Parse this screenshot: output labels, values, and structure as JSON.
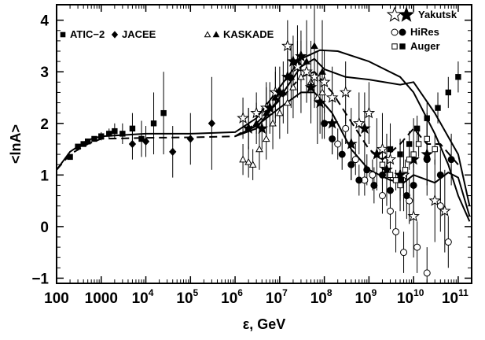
{
  "chart_data": {
    "type": "scatter",
    "xlabel": "ε, GeV",
    "ylabel": "<lnA>",
    "xscale": "log",
    "xlim": [
      100,
      200000000000
    ],
    "ylim": [
      -1.1,
      4.3
    ],
    "x_ticks": [
      {
        "value": 100,
        "base": "100",
        "exp": ""
      },
      {
        "value": 1000,
        "base": "1000",
        "exp": ""
      },
      {
        "value": 10000,
        "base": "10",
        "exp": "4"
      },
      {
        "value": 100000,
        "base": "10",
        "exp": "5"
      },
      {
        "value": 1000000,
        "base": "10",
        "exp": "6"
      },
      {
        "value": 10000000,
        "base": "10",
        "exp": "7"
      },
      {
        "value": 100000000,
        "base": "10",
        "exp": "8"
      },
      {
        "value": 1000000000,
        "base": "10",
        "exp": "9"
      },
      {
        "value": 10000000000,
        "base": "10",
        "exp": "10"
      },
      {
        "value": 100000000000,
        "base": "10",
        "exp": "11"
      }
    ],
    "y_ticks": [
      {
        "value": -1,
        "label": "−1"
      },
      {
        "value": 0,
        "label": "0"
      },
      {
        "value": 1,
        "label": "1"
      },
      {
        "value": 2,
        "label": "2"
      },
      {
        "value": 3,
        "label": "3"
      },
      {
        "value": 4,
        "label": "4"
      }
    ],
    "legend": {
      "left": [
        {
          "label": "ATIC−2",
          "markers": [
            "square-filled"
          ]
        },
        {
          "label": "JACEE",
          "markers": [
            "diamond-filled"
          ]
        },
        {
          "label": "KASKADE",
          "markers": [
            "triangle-open",
            "triangle-filled"
          ]
        }
      ],
      "right": [
        {
          "label": "Yakutsk",
          "markers": [
            "star-open",
            "star-filled"
          ]
        },
        {
          "label": "HiRes",
          "markers": [
            "circle-open",
            "circle-filled"
          ]
        },
        {
          "label": "Auger",
          "markers": [
            "square-open",
            "square-filled"
          ]
        }
      ]
    },
    "series": [
      {
        "name": "ATIC−2",
        "marker": "square-filled",
        "points": [
          [
            200,
            1.35,
            0.05
          ],
          [
            300,
            1.55,
            0.05
          ],
          [
            400,
            1.6,
            0.05
          ],
          [
            500,
            1.65,
            0.05
          ],
          [
            700,
            1.7,
            0.05
          ],
          [
            1000,
            1.75,
            0.08
          ],
          [
            1500,
            1.8,
            0.1
          ],
          [
            2000,
            1.85,
            0.15
          ],
          [
            3000,
            1.8,
            0.2
          ],
          [
            5000,
            1.9,
            0.3
          ],
          [
            8000,
            1.7,
            0.35
          ],
          [
            15000,
            2.0,
            0.6
          ],
          [
            25000,
            2.2,
            0.8
          ]
        ]
      },
      {
        "name": "JACEE",
        "marker": "diamond-filled",
        "points": [
          [
            5000,
            1.6,
            0.3
          ],
          [
            10000,
            1.65,
            0.3
          ],
          [
            40000,
            1.45,
            0.5
          ],
          [
            100000,
            1.7,
            0.5
          ],
          [
            300000,
            2.0,
            0.9
          ]
        ]
      },
      {
        "name": "KASKADE open",
        "marker": "triangle-open",
        "points": [
          [
            1500000,
            1.3,
            0.3
          ],
          [
            2000000,
            1.25,
            0.3
          ],
          [
            2500000,
            1.2,
            0.3
          ],
          [
            3500000,
            1.5,
            0.4
          ],
          [
            5000000,
            1.7,
            0.4
          ],
          [
            7000000,
            2.0,
            0.5
          ],
          [
            10000000,
            2.2,
            0.5
          ],
          [
            15000000,
            2.4,
            0.6
          ],
          [
            20000000,
            2.7,
            0.6
          ],
          [
            30000000,
            2.9,
            0.7
          ],
          [
            50000000,
            2.8,
            0.8
          ],
          [
            70000000,
            2.5,
            0.9
          ],
          [
            90000000,
            2.6,
            0.9
          ]
        ]
      },
      {
        "name": "KASKADE filled",
        "marker": "triangle-filled",
        "points": [
          [
            2000000,
            1.9,
            0.4
          ],
          [
            3000000,
            2.0,
            0.4
          ],
          [
            5000000,
            2.2,
            0.5
          ],
          [
            8000000,
            2.5,
            0.5
          ],
          [
            12000000,
            2.6,
            0.6
          ],
          [
            18000000,
            2.9,
            0.6
          ],
          [
            25000000,
            3.2,
            0.7
          ],
          [
            40000000,
            3.2,
            0.8
          ],
          [
            60000000,
            3.5,
            0.9
          ],
          [
            90000000,
            3.0,
            1.0
          ]
        ]
      },
      {
        "name": "Yakutsk open",
        "marker": "star-open",
        "points": [
          [
            1500000,
            2.1,
            0.4
          ],
          [
            3000000,
            2.2,
            0.4
          ],
          [
            5000000,
            2.3,
            0.5
          ],
          [
            8000000,
            2.6,
            0.5
          ],
          [
            15000000,
            3.5,
            0.5
          ],
          [
            25000000,
            3.1,
            0.5
          ],
          [
            40000000,
            3.0,
            0.6
          ],
          [
            60000000,
            2.9,
            0.6
          ],
          [
            100000000,
            2.8,
            0.6
          ],
          [
            150000000,
            2.5,
            0.6
          ],
          [
            300000000,
            2.6,
            0.6
          ],
          [
            600000000,
            2.0,
            0.6
          ],
          [
            1000000000,
            2.2,
            0.6
          ],
          [
            2000000000,
            1.5,
            0.7
          ],
          [
            3000000000,
            1.3,
            0.7
          ],
          [
            6000000000,
            1.0,
            0.7
          ],
          [
            10000000000,
            0.2,
            0.8
          ],
          [
            30000000000,
            0.5,
            0.8
          ],
          [
            50000000000,
            0.3,
            0.8
          ]
        ]
      },
      {
        "name": "Yakutsk filled",
        "marker": "star-filled",
        "points": [
          [
            2000000,
            1.9,
            0.4
          ],
          [
            4000000,
            1.9,
            0.4
          ],
          [
            6000000,
            2.3,
            0.5
          ],
          [
            10000000,
            2.6,
            0.5
          ],
          [
            15000000,
            2.9,
            0.5
          ],
          [
            20000000,
            3.2,
            0.5
          ],
          [
            30000000,
            3.3,
            0.5
          ],
          [
            50000000,
            2.7,
            0.6
          ],
          [
            80000000,
            2.4,
            0.6
          ],
          [
            150000000,
            2.0,
            0.6
          ],
          [
            400000000,
            1.6,
            0.7
          ],
          [
            800000000,
            1.9,
            0.7
          ],
          [
            1500000000,
            1.4,
            0.7
          ],
          [
            2500000000,
            1.1,
            0.7
          ],
          [
            5000000000,
            1.0,
            0.7
          ],
          [
            10000000000,
            1.3,
            0.8
          ],
          [
            20000000000,
            1.4,
            0.8
          ]
        ]
      },
      {
        "name": "HiRes open",
        "marker": "circle-open",
        "points": [
          [
            200000000,
            1.6,
            0.3
          ],
          [
            300000000,
            1.9,
            0.3
          ],
          [
            500000000,
            1.3,
            0.3
          ],
          [
            800000000,
            0.9,
            0.3
          ],
          [
            1200000000,
            1.0,
            0.3
          ],
          [
            2000000000,
            0.6,
            0.35
          ],
          [
            3000000000,
            0.3,
            0.35
          ],
          [
            4000000000,
            -0.1,
            0.4
          ],
          [
            6000000000,
            -0.5,
            0.4
          ],
          [
            8000000000,
            0.5,
            0.45
          ],
          [
            12000000000,
            -0.4,
            0.5
          ],
          [
            20000000000,
            -0.9,
            0.5
          ],
          [
            40000000000,
            0.4,
            0.5
          ],
          [
            60000000000,
            -0.3,
            0.5
          ]
        ]
      },
      {
        "name": "HiRes filled",
        "marker": "circle-filled",
        "points": [
          [
            100000000,
            2.0,
            0.3
          ],
          [
            150000000,
            1.7,
            0.3
          ],
          [
            250000000,
            1.4,
            0.3
          ],
          [
            400000000,
            1.2,
            0.3
          ],
          [
            600000000,
            0.9,
            0.3
          ],
          [
            900000000,
            1.1,
            0.3
          ],
          [
            1300000000,
            0.8,
            0.35
          ],
          [
            2000000000,
            1.0,
            0.35
          ],
          [
            3000000000,
            0.7,
            0.35
          ],
          [
            5000000000,
            0.9,
            0.4
          ],
          [
            7000000000,
            0.6,
            0.45
          ],
          [
            10000000000,
            0.8,
            0.5
          ],
          [
            20000000000,
            1.3,
            0.5
          ],
          [
            40000000000,
            1.0,
            0.5
          ],
          [
            70000000000,
            1.3,
            0.5
          ]
        ]
      },
      {
        "name": "Auger open",
        "marker": "square-open",
        "points": [
          [
            2000000000,
            1.2,
            0.2
          ],
          [
            3000000000,
            1.0,
            0.2
          ],
          [
            4000000000,
            0.9,
            0.2
          ],
          [
            5000000000,
            0.8,
            0.2
          ],
          [
            6500000000,
            1.1,
            0.2
          ],
          [
            8000000000,
            1.3,
            0.2
          ],
          [
            10000000000,
            1.4,
            0.25
          ],
          [
            13000000000,
            1.6,
            0.25
          ],
          [
            20000000000,
            1.7,
            0.3
          ],
          [
            30000000000,
            1.5,
            0.3
          ]
        ]
      },
      {
        "name": "Auger filled",
        "marker": "square-filled",
        "points": [
          [
            3000000000,
            1.5,
            0.2
          ],
          [
            5000000000,
            1.4,
            0.2
          ],
          [
            8000000000,
            1.6,
            0.25
          ],
          [
            12000000000,
            1.9,
            0.25
          ],
          [
            20000000000,
            2.1,
            0.3
          ],
          [
            35000000000,
            2.3,
            0.3
          ],
          [
            60000000000,
            2.6,
            0.3
          ],
          [
            100000000000,
            2.9,
            0.3
          ]
        ]
      }
    ],
    "curves": [
      {
        "style": "solid",
        "points": [
          [
            100,
            1.1
          ],
          [
            200,
            1.45
          ],
          [
            500,
            1.68
          ],
          [
            1000,
            1.75
          ],
          [
            10000,
            1.8
          ],
          [
            100000,
            1.8
          ],
          [
            1000000,
            1.83
          ],
          [
            3000000,
            2.1
          ],
          [
            10000000,
            2.7
          ],
          [
            30000000,
            3.25
          ],
          [
            80000000,
            3.42
          ],
          [
            200000000,
            3.4
          ],
          [
            1000000000,
            3.2
          ],
          [
            5000000000,
            2.9
          ],
          [
            10000000000,
            2.6
          ],
          [
            30000000000,
            1.8
          ],
          [
            60000000000,
            1.2
          ],
          [
            100000000000,
            0.6
          ],
          [
            180000000000,
            0.1
          ]
        ]
      },
      {
        "style": "solid",
        "points": [
          [
            1000000,
            1.75
          ],
          [
            3000000,
            1.9
          ],
          [
            10000000,
            2.5
          ],
          [
            30000000,
            3.1
          ],
          [
            60000000,
            3.25
          ],
          [
            100000000,
            3.05
          ],
          [
            300000000,
            2.9
          ],
          [
            1000000000,
            2.85
          ],
          [
            5000000000,
            2.75
          ],
          [
            10000000000,
            2.8
          ],
          [
            30000000000,
            2.2
          ],
          [
            100000000000,
            1.4
          ],
          [
            180000000000,
            0.4
          ]
        ]
      },
      {
        "style": "solid",
        "points": [
          [
            1000000,
            1.75
          ],
          [
            3000000,
            1.95
          ],
          [
            10000000,
            2.3
          ],
          [
            30000000,
            2.6
          ],
          [
            60000000,
            2.6
          ],
          [
            150000000,
            2.2
          ],
          [
            400000000,
            1.5
          ],
          [
            1000000000,
            1.1
          ],
          [
            3000000000,
            0.9
          ],
          [
            6000000000,
            0.85
          ],
          [
            10000000000,
            1.0
          ],
          [
            30000000000,
            0.85
          ],
          [
            60000000000,
            1.05
          ],
          [
            100000000000,
            0.95
          ],
          [
            180000000000,
            0.2
          ]
        ]
      },
      {
        "style": "dashed",
        "points": [
          [
            100,
            1.1
          ],
          [
            200,
            1.4
          ],
          [
            500,
            1.6
          ],
          [
            1000,
            1.7
          ],
          [
            10000,
            1.72
          ],
          [
            100000,
            1.73
          ],
          [
            1000000,
            1.75
          ],
          [
            3000000,
            2.0
          ],
          [
            10000000,
            2.45
          ],
          [
            30000000,
            2.9
          ],
          [
            60000000,
            3.0
          ],
          [
            150000000,
            2.6
          ],
          [
            500000000,
            1.9
          ],
          [
            1000000000,
            1.5
          ],
          [
            2000000000,
            1.3
          ],
          [
            5000000000,
            1.6
          ],
          [
            10000000000,
            1.9
          ],
          [
            20000000000,
            1.6
          ],
          [
            40000000000,
            1.6
          ],
          [
            100000000000,
            1.2
          ]
        ]
      }
    ]
  }
}
